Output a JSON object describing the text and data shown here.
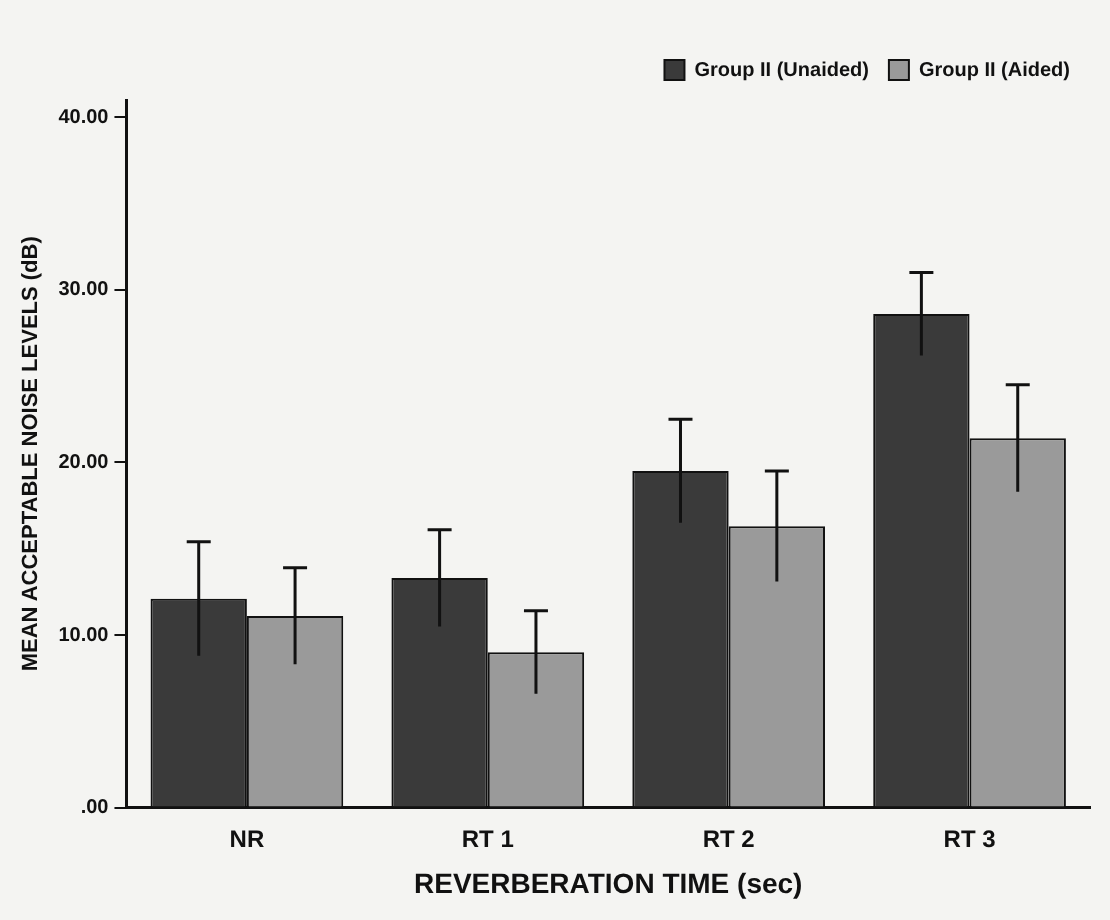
{
  "chart_data": {
    "type": "bar",
    "xlabel": "REVERBERATION TIME (sec)",
    "ylabel": "MEAN ACCEPTABLE NOISE LEVELS (dB)",
    "categories": [
      "NR",
      "RT 1",
      "RT 2",
      "RT 3"
    ],
    "series": [
      {
        "name": "Group II (Unaided)",
        "color": "#3a3a3a",
        "values": [
          12.1,
          13.3,
          19.5,
          28.6
        ],
        "errors": [
          3.3,
          2.8,
          3.0,
          2.4
        ]
      },
      {
        "name": "Group II (Aided)",
        "color": "#9a9a9a",
        "values": [
          11.1,
          9.0,
          16.3,
          21.4
        ],
        "errors": [
          2.8,
          2.4,
          3.2,
          3.1
        ]
      }
    ],
    "ylim": [
      0,
      41
    ],
    "yticks": [
      {
        "value": 0,
        "label": ".00"
      },
      {
        "value": 10,
        "label": "10.00"
      },
      {
        "value": 20,
        "label": "20.00"
      },
      {
        "value": 30,
        "label": "30.00"
      },
      {
        "value": 40,
        "label": "40.00"
      }
    ],
    "grid": false,
    "legend": "top right"
  }
}
